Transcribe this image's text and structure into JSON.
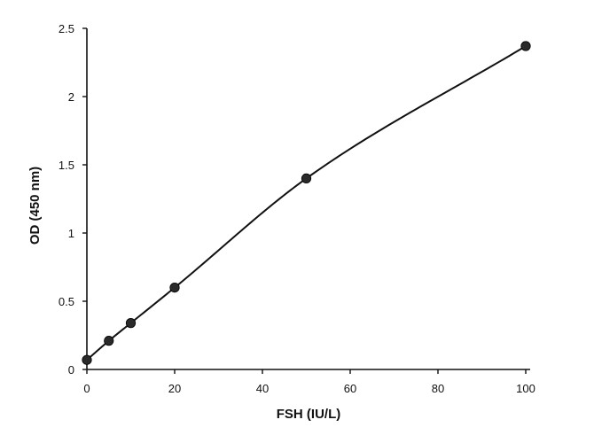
{
  "chart_data": {
    "type": "scatter",
    "title": "",
    "xlabel": "FSH (IU/L)",
    "ylabel": "OD (450 nm)",
    "xlim": [
      0,
      100
    ],
    "ylim": [
      0,
      2.5
    ],
    "x_ticks": [
      "0",
      "20",
      "40",
      "60",
      "80",
      "100"
    ],
    "y_ticks": [
      "0",
      "0.5",
      "1",
      "1.5",
      "2",
      "2.5"
    ],
    "grid": false,
    "legend": "none",
    "fit_line": "smooth curve through points",
    "series": [
      {
        "x": [
          0,
          5,
          10,
          20,
          50,
          100
        ],
        "y": [
          0.07,
          0.21,
          0.34,
          0.6,
          1.4,
          2.37
        ]
      }
    ],
    "colors": {
      "marker": "#2a2a2a",
      "line": "#111111",
      "axis": "#111111"
    }
  }
}
